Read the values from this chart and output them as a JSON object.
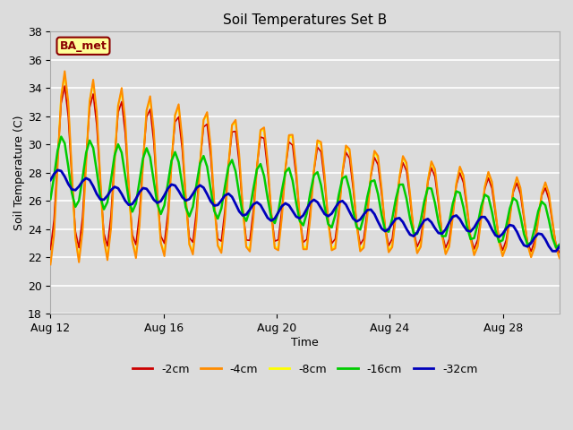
{
  "title": "Soil Temperatures Set B",
  "xlabel": "Time",
  "ylabel": "Soil Temperature (C)",
  "ylim": [
    18,
    38
  ],
  "background_color": "#dcdcdc",
  "plot_bg_color": "#dcdcdc",
  "grid_color": "#ffffff",
  "annotation_text": "BA_met",
  "annotation_box_color": "#ffff99",
  "annotation_border_color": "#8b0000",
  "annotation_text_color": "#8b0000",
  "colors": {
    "-2cm": "#cc0000",
    "-4cm": "#ff8c00",
    "-8cm": "#ffff00",
    "-16cm": "#00cc00",
    "-32cm": "#0000bb"
  },
  "line_widths": {
    "-2cm": 1.2,
    "-4cm": 1.5,
    "-8cm": 1.5,
    "-16cm": 1.8,
    "-32cm": 2.0
  },
  "xtick_labels": [
    "Aug 12",
    "Aug 16",
    "Aug 20",
    "Aug 24",
    "Aug 28"
  ],
  "xtick_positions": [
    0,
    4,
    8,
    12,
    16
  ],
  "ytick_values": [
    18,
    20,
    22,
    24,
    26,
    28,
    30,
    32,
    34,
    36,
    38
  ]
}
